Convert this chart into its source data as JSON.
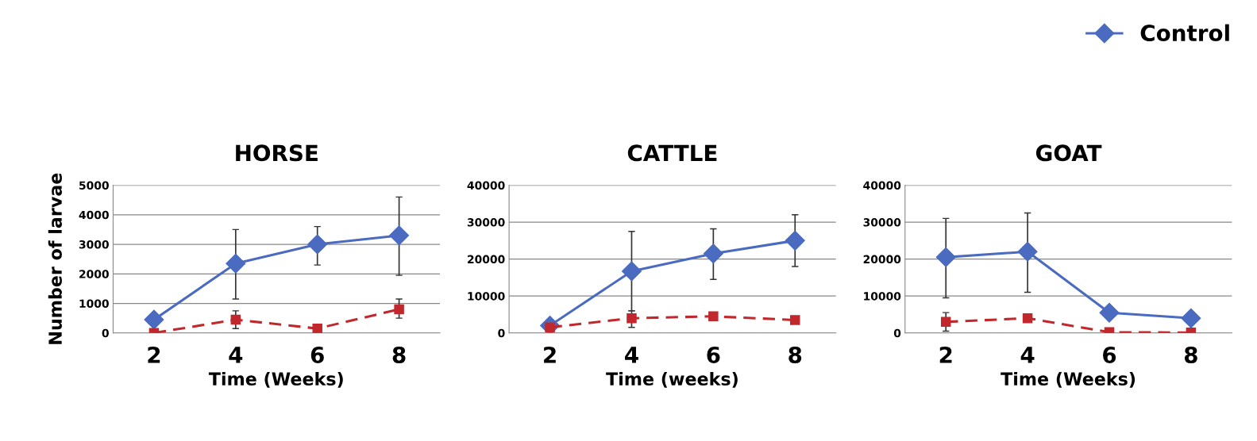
{
  "chart_data": [
    {
      "type": "line",
      "title": "HORSE",
      "xlabel": "Time (Weeks)",
      "ylabel": "Number of larvae",
      "categories": [
        "2",
        "4",
        "6",
        "8"
      ],
      "ylim": [
        0,
        5000
      ],
      "yticks": [
        0,
        1000,
        2000,
        3000,
        4000,
        5000
      ],
      "grid": "y",
      "series": [
        {
          "color": "#4a6bbf",
          "marker": "diamond",
          "line_style": "solid",
          "values": [
            450,
            2350,
            3000,
            3300
          ],
          "errors": [
            null,
            [
              1150,
              3500
            ],
            [
              2300,
              3600
            ],
            [
              1950,
              4600
            ]
          ]
        },
        {
          "color": "#c0282d",
          "marker": "square",
          "line_style": "dashed",
          "values": [
            0,
            450,
            150,
            800
          ],
          "errors": [
            null,
            [
              150,
              750
            ],
            null,
            [
              500,
              1150
            ]
          ]
        }
      ]
    },
    {
      "type": "line",
      "title": "CATTLE",
      "xlabel": "Time (weeks)",
      "categories": [
        "2",
        "4",
        "6",
        "8"
      ],
      "ylim": [
        0,
        40000
      ],
      "yticks": [
        0,
        10000,
        20000,
        30000,
        40000
      ],
      "grid": "y",
      "series": [
        {
          "color": "#4a6bbf",
          "marker": "diamond",
          "line_style": "solid",
          "values": [
            2000,
            16700,
            21500,
            25000
          ],
          "errors": [
            null,
            [
              6000,
              27500
            ],
            [
              14500,
              28200
            ],
            [
              18000,
              32000
            ]
          ]
        },
        {
          "color": "#c0282d",
          "marker": "square",
          "line_style": "dashed",
          "values": [
            1500,
            4000,
            4500,
            3500
          ],
          "errors": [
            null,
            [
              1500,
              6000
            ],
            null,
            null
          ]
        }
      ]
    },
    {
      "type": "line",
      "title": "GOAT",
      "xlabel": "Time (Weeks)",
      "categories": [
        "2",
        "4",
        "6",
        "8"
      ],
      "ylim": [
        0,
        40000
      ],
      "yticks": [
        0,
        10000,
        20000,
        30000,
        40000
      ],
      "grid": "y",
      "legend": "top right",
      "series": [
        {
          "name": "Control",
          "color": "#4a6bbf",
          "marker": "diamond",
          "line_style": "solid",
          "values": [
            20500,
            22000,
            5500,
            4000
          ],
          "errors": [
            [
              9500,
              31000
            ],
            [
              11000,
              32500
            ],
            null,
            null
          ]
        },
        {
          "color": "#c0282d",
          "marker": "square",
          "line_style": "dashed",
          "values": [
            3000,
            4000,
            200,
            100
          ],
          "errors": [
            [
              500,
              5500
            ],
            null,
            null,
            null
          ]
        }
      ]
    }
  ]
}
